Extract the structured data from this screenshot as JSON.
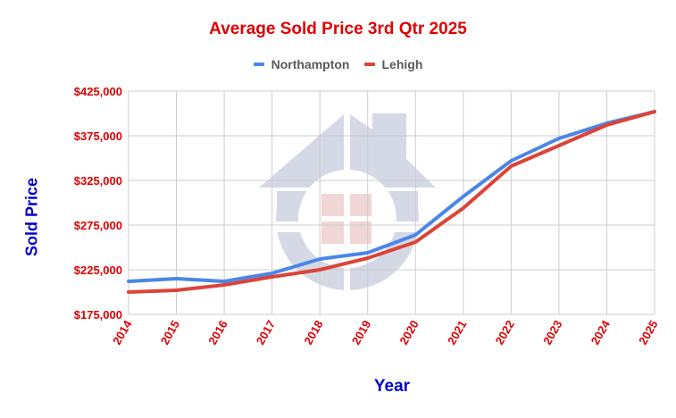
{
  "chart_data": {
    "type": "line",
    "title": "Average Sold Price 3rd Qtr 2025",
    "xlabel": "Year",
    "ylabel": "Sold Price",
    "categories": [
      "2014",
      "2015",
      "2016",
      "2017",
      "2018",
      "2019",
      "2020",
      "2021",
      "2022",
      "2023",
      "2024",
      "2025"
    ],
    "series": [
      {
        "name": "Northampton",
        "color": "#4a86e8",
        "values": [
          212000,
          215000,
          212000,
          221000,
          237000,
          244000,
          264000,
          307000,
          347000,
          372000,
          389000,
          402000
        ]
      },
      {
        "name": "Lehigh",
        "color": "#db4437",
        "values": [
          200000,
          202000,
          208000,
          217000,
          225000,
          238000,
          256000,
          294000,
          341000,
          364000,
          387000,
          402000
        ]
      }
    ],
    "ylim": [
      175000,
      425000
    ],
    "yticks": [
      175000,
      225000,
      275000,
      325000,
      375000,
      425000
    ],
    "ytick_labels": [
      "$175,000",
      "$225,000",
      "$275,000",
      "$325,000",
      "$375,000",
      "$425,000"
    ],
    "grid": true,
    "legend_position": "top",
    "watermark": "house-logo"
  },
  "colors": {
    "title": "#e00000",
    "axis_titles": "#0000cc",
    "tick_labels": "#e00000",
    "legend_text": "#595959",
    "grid": "#cccccc",
    "watermark_house": "#d5d9e6",
    "watermark_window": "#f1d6d6"
  }
}
